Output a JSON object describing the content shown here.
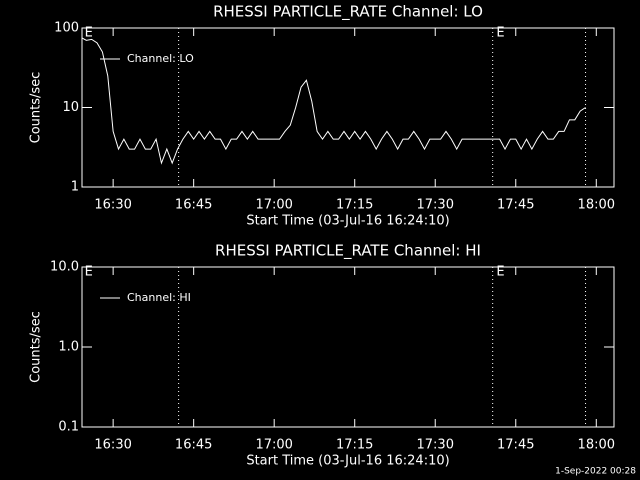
{
  "chart_data": [
    {
      "type": "line",
      "title": "RHESSI PARTICLE_RATE Channel: LO",
      "xlabel": "Start Time (03-Jul-16 16:24:10)",
      "ylabel": "Counts/sec",
      "log_y": true,
      "xlim": [
        984.2,
        1083.3
      ],
      "ylim": [
        1,
        100
      ],
      "xticks": [
        {
          "value": 990,
          "label": "16:30"
        },
        {
          "value": 1005,
          "label": "16:45"
        },
        {
          "value": 1020,
          "label": "17:00"
        },
        {
          "value": 1035,
          "label": "17:15"
        },
        {
          "value": 1050,
          "label": "17:30"
        },
        {
          "value": 1065,
          "label": "17:45"
        },
        {
          "value": 1080,
          "label": "18:00"
        }
      ],
      "yticks": [
        1,
        10,
        100
      ],
      "vlines": [
        1002.2,
        1060.7,
        1078
      ],
      "annotations": [
        {
          "x": 984.5,
          "text": "E"
        },
        {
          "x": 1061.2,
          "text": "E"
        }
      ],
      "x": [
        984.2,
        985,
        986,
        987,
        988,
        989,
        990,
        991,
        992,
        993,
        994,
        995,
        996,
        997,
        998,
        999,
        1000,
        1001,
        1002,
        1003,
        1004,
        1005,
        1006,
        1007,
        1008,
        1009,
        1010,
        1011,
        1012,
        1013,
        1014,
        1015,
        1016,
        1017,
        1018,
        1019,
        1020,
        1021,
        1022,
        1023,
        1024,
        1025,
        1026,
        1027,
        1028,
        1029,
        1030,
        1031,
        1032,
        1033,
        1034,
        1035,
        1036,
        1037,
        1038,
        1039,
        1040,
        1041,
        1042,
        1043,
        1044,
        1045,
        1046,
        1047,
        1048,
        1049,
        1050,
        1051,
        1052,
        1053,
        1054,
        1055,
        1056,
        1057,
        1058,
        1059,
        1060,
        1061,
        1062,
        1063,
        1064,
        1065,
        1066,
        1067,
        1068,
        1069,
        1070,
        1071,
        1072,
        1073,
        1074,
        1075,
        1076,
        1077,
        1078
      ],
      "series": [
        {
          "name": "Channel: LO",
          "color": "#ffffff",
          "values": [
            75,
            70,
            72,
            65,
            50,
            25,
            5,
            3,
            4,
            3,
            3,
            4,
            3,
            3,
            4,
            2,
            3,
            2,
            3,
            4,
            5,
            4,
            5,
            4,
            5,
            4,
            4,
            3,
            4,
            4,
            5,
            4,
            5,
            4,
            4,
            4,
            4,
            4,
            5,
            6,
            10,
            18,
            22,
            12,
            5,
            4,
            5,
            4,
            4,
            5,
            4,
            5,
            4,
            5,
            4,
            3,
            4,
            5,
            4,
            3,
            4,
            4,
            5,
            4,
            3,
            4,
            4,
            4,
            5,
            4,
            3,
            4,
            4,
            4,
            4,
            4,
            4,
            4,
            4,
            3,
            4,
            4,
            3,
            4,
            3,
            4,
            5,
            4,
            4,
            5,
            5,
            7,
            7,
            9,
            10
          ]
        }
      ]
    },
    {
      "type": "line",
      "title": "RHESSI PARTICLE_RATE Channel: HI",
      "xlabel": "Start Time (03-Jul-16 16:24:10)",
      "ylabel": "Counts/sec",
      "log_y": true,
      "xlim": [
        984.2,
        1083.3
      ],
      "ylim": [
        0.1,
        10
      ],
      "xticks": [
        {
          "value": 990,
          "label": "16:30"
        },
        {
          "value": 1005,
          "label": "16:45"
        },
        {
          "value": 1020,
          "label": "17:00"
        },
        {
          "value": 1035,
          "label": "17:15"
        },
        {
          "value": 1050,
          "label": "17:30"
        },
        {
          "value": 1065,
          "label": "17:45"
        },
        {
          "value": 1080,
          "label": "18:00"
        }
      ],
      "yticks": [
        0.1,
        {
          "value": 1,
          "label": "1.0"
        },
        {
          "value": 10,
          "label": "10.0"
        }
      ],
      "vlines": [
        1002.2,
        1060.7,
        1078
      ],
      "annotations": [
        {
          "x": 984.5,
          "text": "E"
        },
        {
          "x": 1061.2,
          "text": "E"
        }
      ],
      "x": [],
      "series": [
        {
          "name": "Channel: HI",
          "color": "#ffffff",
          "values": []
        }
      ]
    }
  ],
  "footer": "1-Sep-2022 00:28"
}
